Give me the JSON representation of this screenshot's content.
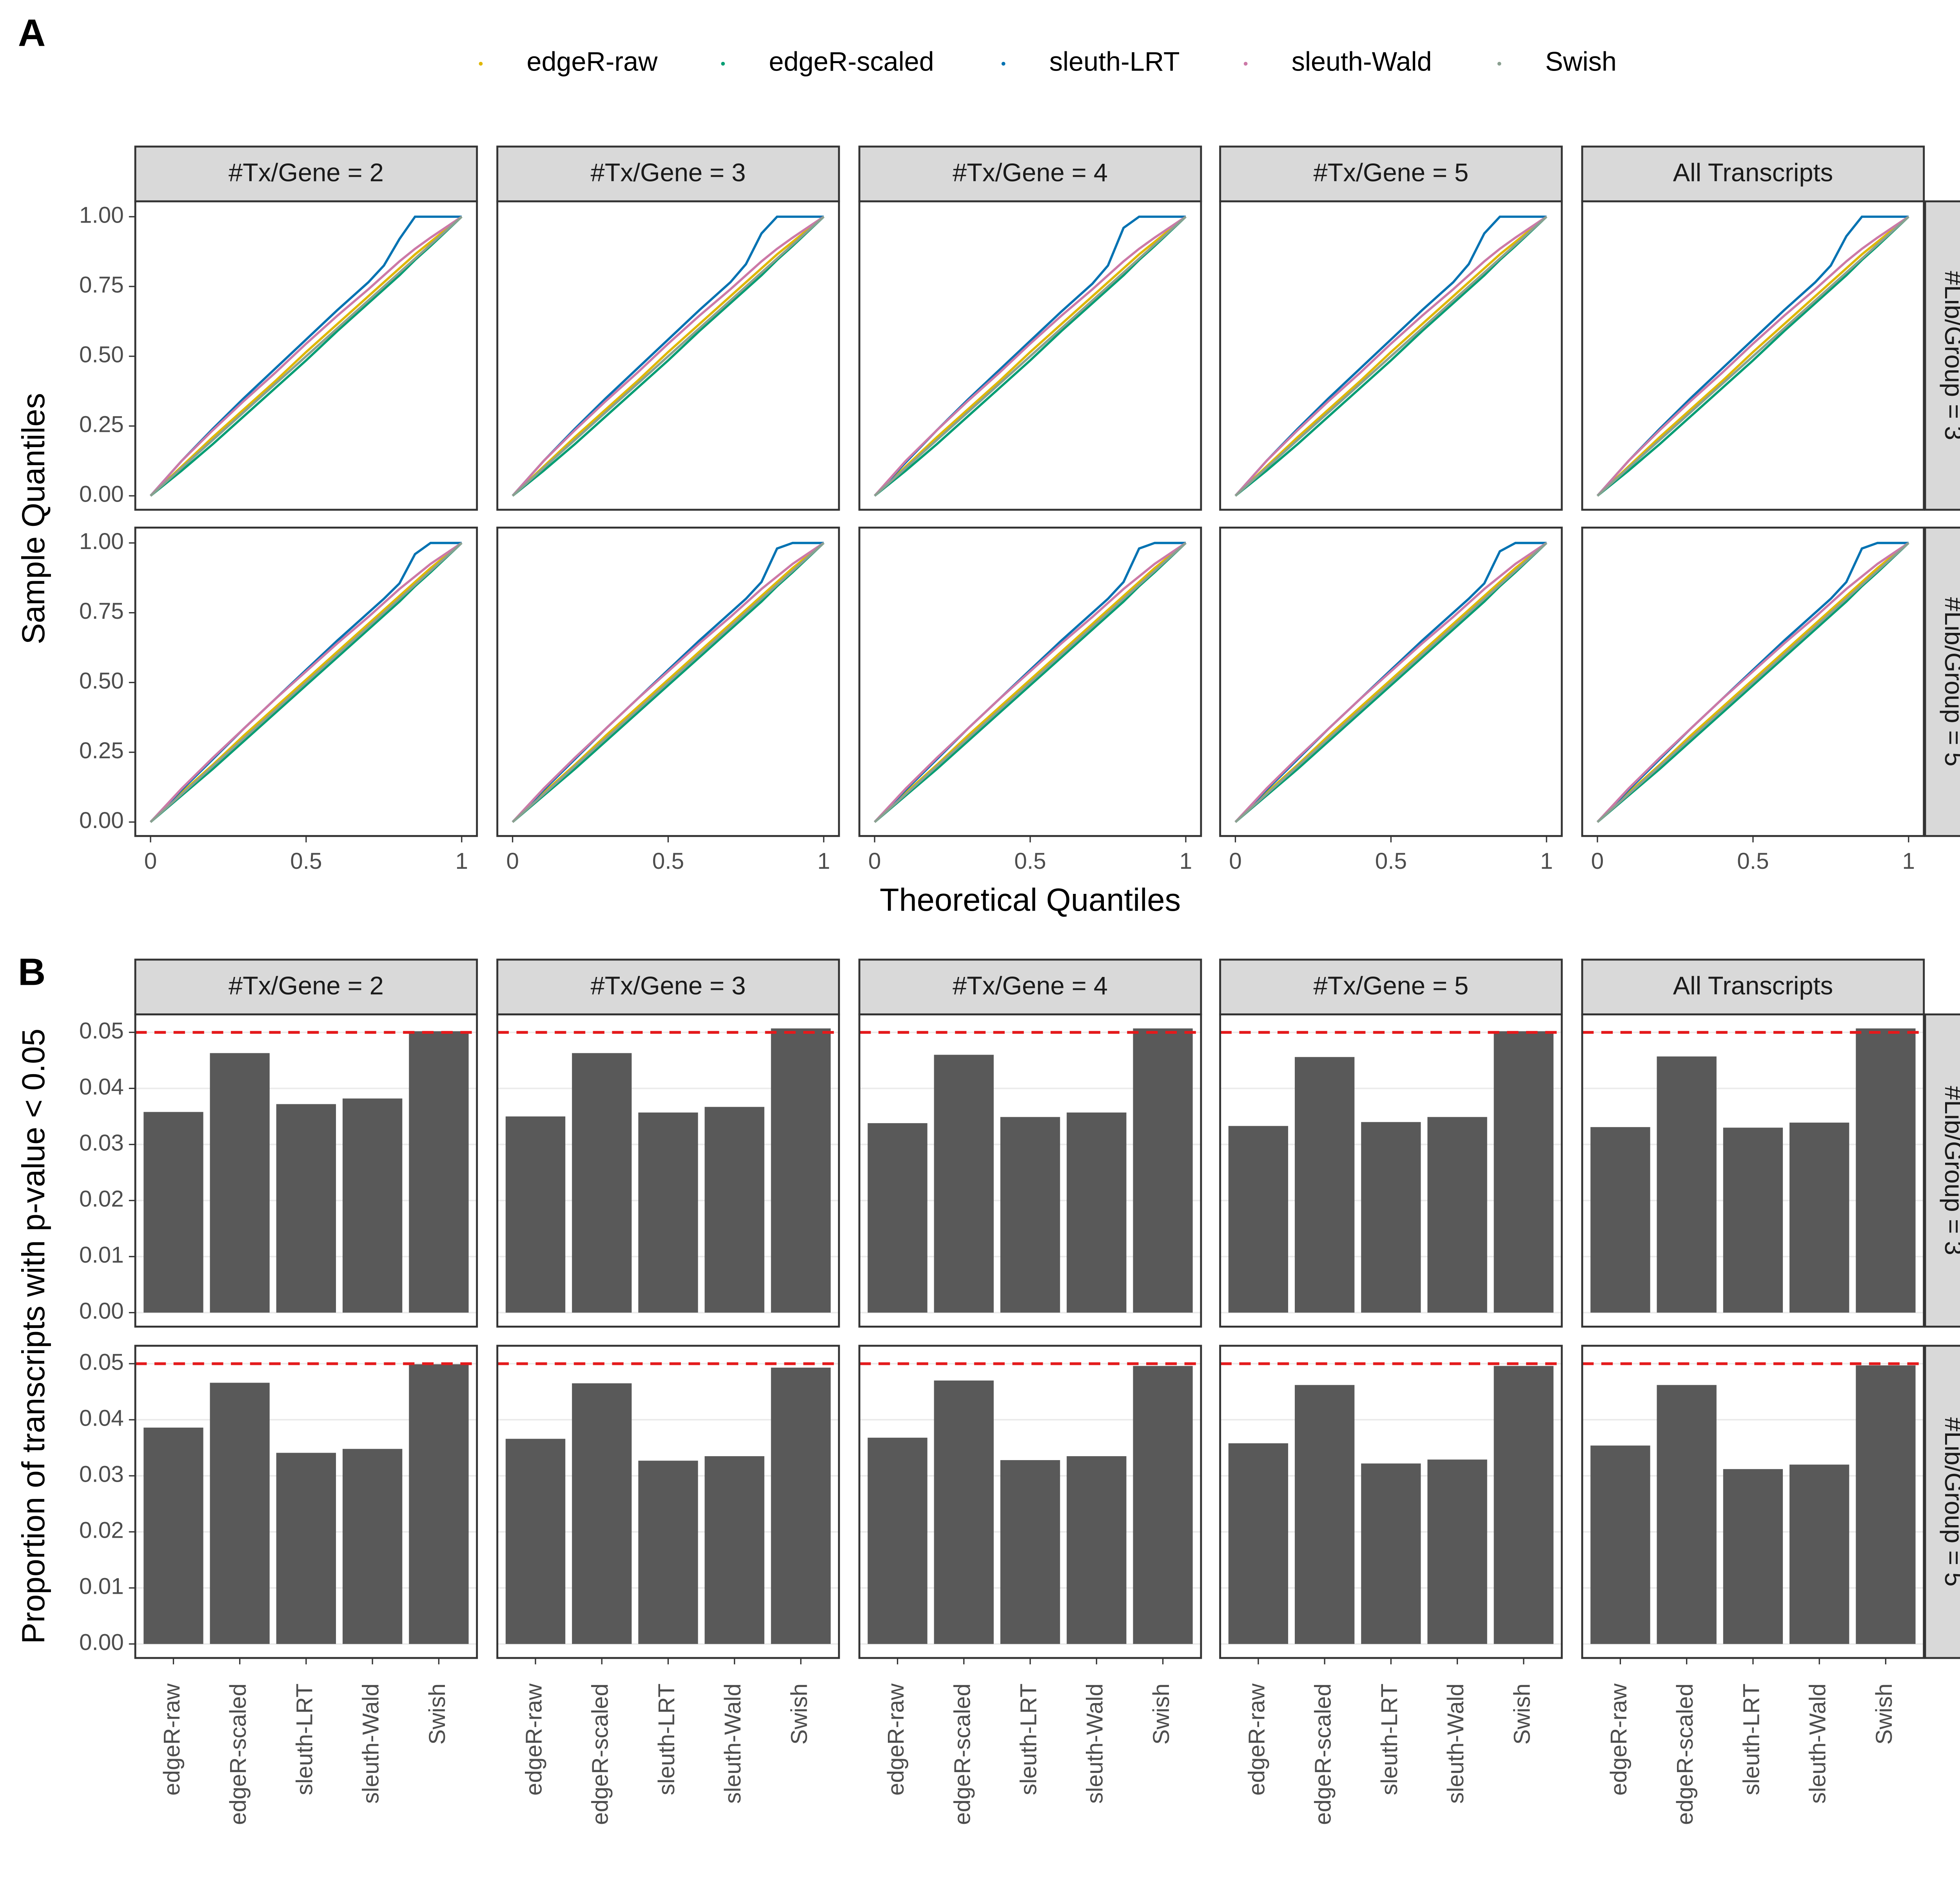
{
  "chart_data": [
    {
      "type": "line",
      "panel_label": "A",
      "xlabel": "Theoretical Quantiles",
      "ylabel": "Sample Quantiles",
      "column_facets": [
        "#Tx/Gene = 2",
        "#Tx/Gene = 3",
        "#Tx/Gene = 4",
        "#Tx/Gene = 5",
        "All Transcripts"
      ],
      "row_facets": [
        "#Lib/Group = 3",
        "#Lib/Group = 5"
      ],
      "series": [
        {
          "name": "edgeR-raw",
          "color": "#e0b700"
        },
        {
          "name": "edgeR-scaled",
          "color": "#009e73"
        },
        {
          "name": "sleuth-LRT",
          "color": "#0072b2"
        },
        {
          "name": "sleuth-Wald",
          "color": "#cc79a7"
        },
        {
          "name": "Swish",
          "color": "#8aa090"
        }
      ],
      "x": [
        0,
        0.1,
        0.2,
        0.3,
        0.4,
        0.5,
        0.6,
        0.7,
        0.75,
        0.8,
        0.85,
        0.9,
        1
      ],
      "xlim": [
        -0.049,
        1.049
      ],
      "xticks": [
        0,
        0.5,
        1
      ],
      "ylim": [
        -0.05,
        1.055
      ],
      "yticks": [
        {
          "value": 0,
          "label": "0.00"
        },
        {
          "value": 0.25,
          "label": "0.25"
        },
        {
          "value": 0.5,
          "label": "0.50"
        },
        {
          "value": 0.75,
          "label": "0.75"
        },
        {
          "value": 1,
          "label": "1.00"
        }
      ],
      "grid": false,
      "panels": [
        {
          "values": [
            [
              0,
              0.105,
              0.21,
              0.31,
              0.41,
              0.515,
              0.615,
              0.715,
              0.765,
              0.815,
              0.865,
              0.91,
              1
            ],
            [
              0,
              0.09,
              0.185,
              0.285,
              0.385,
              0.485,
              0.59,
              0.69,
              0.74,
              0.79,
              0.845,
              0.895,
              1
            ],
            [
              0,
              0.125,
              0.24,
              0.35,
              0.455,
              0.56,
              0.665,
              0.765,
              0.825,
              0.92,
              1,
              1,
              1
            ],
            [
              0,
              0.125,
              0.235,
              0.34,
              0.44,
              0.545,
              0.645,
              0.74,
              0.79,
              0.84,
              0.885,
              0.925,
              1
            ],
            [
              0,
              0.1,
              0.2,
              0.3,
              0.4,
              0.5,
              0.6,
              0.7,
              0.75,
              0.8,
              0.85,
              0.9,
              1
            ]
          ]
        },
        {
          "values": [
            [
              0,
              0.105,
              0.21,
              0.31,
              0.41,
              0.515,
              0.615,
              0.715,
              0.765,
              0.815,
              0.865,
              0.91,
              1
            ],
            [
              0,
              0.09,
              0.185,
              0.285,
              0.385,
              0.485,
              0.59,
              0.69,
              0.74,
              0.79,
              0.845,
              0.895,
              1
            ],
            [
              0,
              0.125,
              0.24,
              0.35,
              0.455,
              0.56,
              0.665,
              0.765,
              0.83,
              0.94,
              1,
              1,
              1
            ],
            [
              0,
              0.125,
              0.235,
              0.34,
              0.44,
              0.545,
              0.645,
              0.74,
              0.79,
              0.84,
              0.885,
              0.925,
              1
            ],
            [
              0,
              0.1,
              0.2,
              0.3,
              0.4,
              0.5,
              0.6,
              0.7,
              0.75,
              0.8,
              0.85,
              0.9,
              1
            ]
          ]
        },
        {
          "values": [
            [
              0,
              0.105,
              0.21,
              0.31,
              0.41,
              0.515,
              0.615,
              0.715,
              0.765,
              0.815,
              0.865,
              0.91,
              1
            ],
            [
              0,
              0.09,
              0.185,
              0.285,
              0.385,
              0.485,
              0.59,
              0.69,
              0.74,
              0.79,
              0.845,
              0.895,
              1
            ],
            [
              0,
              0.12,
              0.235,
              0.345,
              0.45,
              0.555,
              0.66,
              0.76,
              0.825,
              0.96,
              1,
              1,
              1
            ],
            [
              0,
              0.125,
              0.235,
              0.34,
              0.44,
              0.545,
              0.645,
              0.74,
              0.79,
              0.84,
              0.885,
              0.925,
              1
            ],
            [
              0,
              0.1,
              0.2,
              0.3,
              0.4,
              0.5,
              0.6,
              0.7,
              0.75,
              0.8,
              0.85,
              0.9,
              1
            ]
          ]
        },
        {
          "values": [
            [
              0,
              0.105,
              0.21,
              0.31,
              0.41,
              0.515,
              0.615,
              0.715,
              0.765,
              0.815,
              0.865,
              0.91,
              1
            ],
            [
              0,
              0.09,
              0.185,
              0.285,
              0.385,
              0.485,
              0.59,
              0.69,
              0.74,
              0.79,
              0.845,
              0.895,
              1
            ],
            [
              0,
              0.125,
              0.24,
              0.35,
              0.455,
              0.56,
              0.665,
              0.765,
              0.83,
              0.94,
              1,
              1,
              1
            ],
            [
              0,
              0.125,
              0.235,
              0.34,
              0.44,
              0.545,
              0.645,
              0.74,
              0.79,
              0.84,
              0.885,
              0.925,
              1
            ],
            [
              0,
              0.1,
              0.2,
              0.3,
              0.4,
              0.5,
              0.6,
              0.7,
              0.75,
              0.8,
              0.85,
              0.9,
              1
            ]
          ]
        },
        {
          "values": [
            [
              0,
              0.105,
              0.21,
              0.31,
              0.41,
              0.515,
              0.615,
              0.715,
              0.765,
              0.815,
              0.865,
              0.91,
              1
            ],
            [
              0,
              0.09,
              0.185,
              0.285,
              0.385,
              0.485,
              0.59,
              0.69,
              0.74,
              0.79,
              0.845,
              0.895,
              1
            ],
            [
              0,
              0.125,
              0.24,
              0.35,
              0.455,
              0.56,
              0.665,
              0.765,
              0.825,
              0.93,
              1,
              1,
              1
            ],
            [
              0,
              0.125,
              0.235,
              0.34,
              0.44,
              0.545,
              0.645,
              0.74,
              0.79,
              0.84,
              0.885,
              0.925,
              1
            ],
            [
              0,
              0.1,
              0.2,
              0.3,
              0.4,
              0.5,
              0.6,
              0.7,
              0.75,
              0.8,
              0.85,
              0.9,
              1
            ]
          ]
        },
        {
          "values": [
            [
              0,
              0.105,
              0.205,
              0.31,
              0.41,
              0.51,
              0.61,
              0.71,
              0.76,
              0.81,
              0.86,
              0.91,
              1
            ],
            [
              0,
              0.095,
              0.19,
              0.29,
              0.39,
              0.49,
              0.59,
              0.69,
              0.74,
              0.79,
              0.845,
              0.895,
              1
            ],
            [
              0,
              0.115,
              0.225,
              0.335,
              0.44,
              0.545,
              0.65,
              0.75,
              0.8,
              0.855,
              0.96,
              1,
              1
            ],
            [
              0,
              0.12,
              0.23,
              0.335,
              0.44,
              0.54,
              0.64,
              0.735,
              0.785,
              0.835,
              0.88,
              0.925,
              1
            ],
            [
              0,
              0.1,
              0.2,
              0.3,
              0.4,
              0.5,
              0.6,
              0.7,
              0.75,
              0.8,
              0.85,
              0.9,
              1
            ]
          ]
        },
        {
          "values": [
            [
              0,
              0.105,
              0.205,
              0.31,
              0.41,
              0.51,
              0.61,
              0.71,
              0.76,
              0.81,
              0.86,
              0.91,
              1
            ],
            [
              0,
              0.095,
              0.19,
              0.29,
              0.39,
              0.49,
              0.59,
              0.69,
              0.74,
              0.79,
              0.845,
              0.895,
              1
            ],
            [
              0,
              0.115,
              0.225,
              0.335,
              0.44,
              0.545,
              0.65,
              0.75,
              0.8,
              0.86,
              0.98,
              1,
              1
            ],
            [
              0,
              0.12,
              0.23,
              0.335,
              0.44,
              0.54,
              0.64,
              0.735,
              0.785,
              0.835,
              0.88,
              0.925,
              1
            ],
            [
              0,
              0.1,
              0.2,
              0.3,
              0.4,
              0.5,
              0.6,
              0.7,
              0.75,
              0.8,
              0.85,
              0.9,
              1
            ]
          ]
        },
        {
          "values": [
            [
              0,
              0.105,
              0.205,
              0.31,
              0.41,
              0.51,
              0.61,
              0.71,
              0.76,
              0.81,
              0.86,
              0.91,
              1
            ],
            [
              0,
              0.095,
              0.19,
              0.29,
              0.39,
              0.49,
              0.59,
              0.69,
              0.74,
              0.79,
              0.845,
              0.895,
              1
            ],
            [
              0,
              0.115,
              0.225,
              0.335,
              0.44,
              0.545,
              0.65,
              0.75,
              0.8,
              0.86,
              0.98,
              1,
              1
            ],
            [
              0,
              0.12,
              0.23,
              0.335,
              0.44,
              0.54,
              0.64,
              0.735,
              0.785,
              0.835,
              0.88,
              0.925,
              1
            ],
            [
              0,
              0.1,
              0.2,
              0.3,
              0.4,
              0.5,
              0.6,
              0.7,
              0.75,
              0.8,
              0.85,
              0.9,
              1
            ]
          ]
        },
        {
          "values": [
            [
              0,
              0.105,
              0.205,
              0.31,
              0.41,
              0.51,
              0.61,
              0.71,
              0.76,
              0.81,
              0.86,
              0.91,
              1
            ],
            [
              0,
              0.095,
              0.19,
              0.29,
              0.39,
              0.49,
              0.59,
              0.69,
              0.74,
              0.79,
              0.845,
              0.895,
              1
            ],
            [
              0,
              0.115,
              0.225,
              0.335,
              0.44,
              0.545,
              0.65,
              0.75,
              0.8,
              0.855,
              0.97,
              1,
              1
            ],
            [
              0,
              0.12,
              0.23,
              0.335,
              0.44,
              0.54,
              0.64,
              0.735,
              0.785,
              0.835,
              0.88,
              0.925,
              1
            ],
            [
              0,
              0.1,
              0.2,
              0.3,
              0.4,
              0.5,
              0.6,
              0.7,
              0.75,
              0.8,
              0.85,
              0.9,
              1
            ]
          ]
        },
        {
          "values": [
            [
              0,
              0.105,
              0.205,
              0.31,
              0.41,
              0.51,
              0.61,
              0.71,
              0.76,
              0.81,
              0.86,
              0.91,
              1
            ],
            [
              0,
              0.095,
              0.19,
              0.29,
              0.39,
              0.49,
              0.59,
              0.69,
              0.74,
              0.79,
              0.845,
              0.895,
              1
            ],
            [
              0,
              0.115,
              0.225,
              0.335,
              0.44,
              0.545,
              0.65,
              0.75,
              0.8,
              0.86,
              0.98,
              1,
              1
            ],
            [
              0,
              0.12,
              0.23,
              0.335,
              0.44,
              0.54,
              0.64,
              0.735,
              0.785,
              0.835,
              0.88,
              0.925,
              1
            ],
            [
              0,
              0.1,
              0.2,
              0.3,
              0.4,
              0.5,
              0.6,
              0.7,
              0.75,
              0.8,
              0.85,
              0.9,
              1
            ]
          ]
        }
      ]
    },
    {
      "type": "bar",
      "panel_label": "B",
      "ylabel": "Proportion of transcripts with p-value < 0.05",
      "column_facets": [
        "#Tx/Gene = 2",
        "#Tx/Gene = 3",
        "#Tx/Gene = 4",
        "#Tx/Gene = 5",
        "All Transcripts"
      ],
      "row_facets": [
        "#Lib/Group = 3",
        "#Lib/Group = 5"
      ],
      "categories": [
        "edgeR-raw",
        "edgeR-scaled",
        "sleuth-LRT",
        "sleuth-Wald",
        "Swish"
      ],
      "color": "#595959",
      "reference_line": 0.05,
      "reference_color": "#e41a1c",
      "ylim": [
        -0.0025,
        0.0532
      ],
      "yticks": [
        {
          "value": 0,
          "label": "0.00"
        },
        0.01,
        0.02,
        0.03,
        0.04,
        0.05
      ],
      "grid": true,
      "panels": [
        {
          "values": [
            0.0358,
            0.0463,
            0.0372,
            0.0382,
            0.0502
          ]
        },
        {
          "values": [
            0.035,
            0.0463,
            0.0357,
            0.0367,
            0.0507
          ]
        },
        {
          "values": [
            0.0338,
            0.046,
            0.0349,
            0.0357,
            0.0507
          ]
        },
        {
          "values": [
            0.0333,
            0.0456,
            0.034,
            0.0349,
            0.0502
          ]
        },
        {
          "values": [
            0.0331,
            0.0457,
            0.033,
            0.0339,
            0.0507
          ]
        },
        {
          "values": [
            0.0386,
            0.0466,
            0.0341,
            0.0348,
            0.0499
          ]
        },
        {
          "values": [
            0.0366,
            0.0465,
            0.0327,
            0.0335,
            0.0493
          ]
        },
        {
          "values": [
            0.0368,
            0.047,
            0.0328,
            0.0335,
            0.0496
          ]
        },
        {
          "values": [
            0.0358,
            0.0462,
            0.0322,
            0.0329,
            0.0496
          ]
        },
        {
          "values": [
            0.0354,
            0.0462,
            0.0312,
            0.032,
            0.0497
          ]
        }
      ]
    }
  ]
}
